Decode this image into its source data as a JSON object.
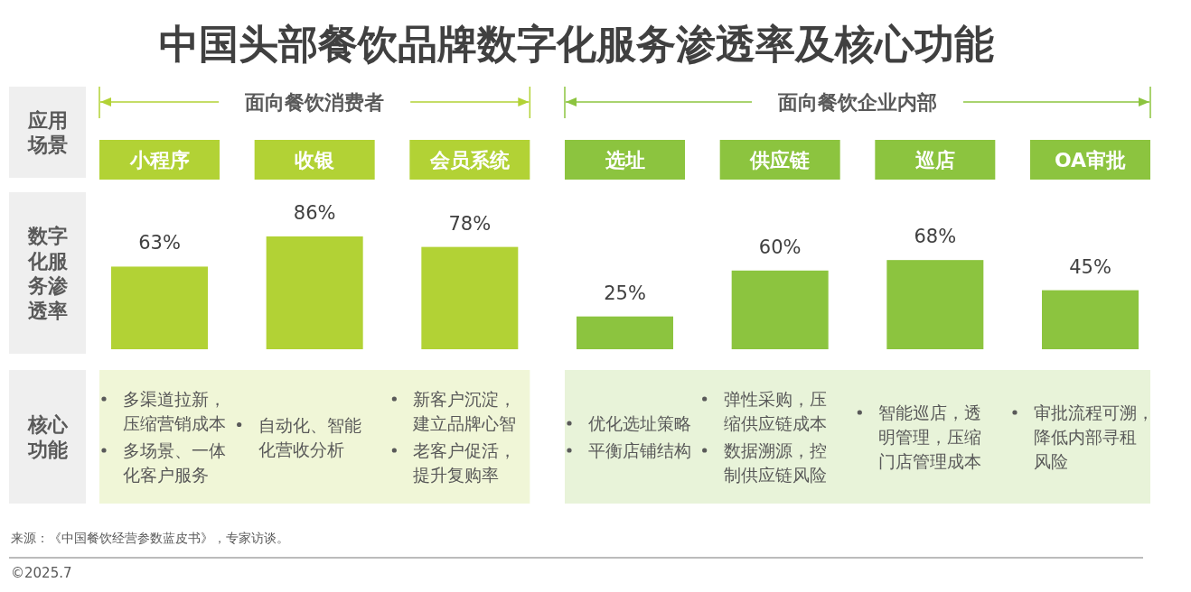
{
  "chart_data": {
    "type": "bar",
    "title": "中国头部餐饮品牌数字化服务渗透率及核心功能",
    "xlabel": "应用场景",
    "ylabel": "数字化服务渗透率",
    "categories": [
      "小程序",
      "收银",
      "会员系统",
      "选址",
      "供应链",
      "巡店",
      "OA审批"
    ],
    "values": [
      63,
      86,
      78,
      25,
      60,
      68,
      45
    ],
    "colors": [
      "#b2d235",
      "#b2d235",
      "#b2d235",
      "#8cc43f",
      "#8cc43f",
      "#8cc43f",
      "#8cc43f"
    ],
    "value_labels": [
      "63%",
      "86%",
      "78%",
      "25%",
      "60%",
      "68%",
      "45%"
    ],
    "annotations": [
      "面向餐饮消费者",
      "面向餐饮企业内部",
      "核心功能",
      "多渠道拉新，压缩营销成本",
      "多场景、一体化客户服务",
      "自动化、智能化营收分析",
      "新客户沉淀，建立品牌心智",
      "老客户促活，提升复购率",
      "优化选址策略",
      "平衡店铺结构",
      "弹性采购，压缩供应链成本",
      "数据溯源，控制供应链风险",
      "智能巡店，透明管理，压缩门店管理成本",
      "审批流程可溯，降低内部寻租风险",
      "来源：《中国餐饮经营参数蓝皮书》，专家访谈。",
      "©2025.7"
    ]
  }
}
